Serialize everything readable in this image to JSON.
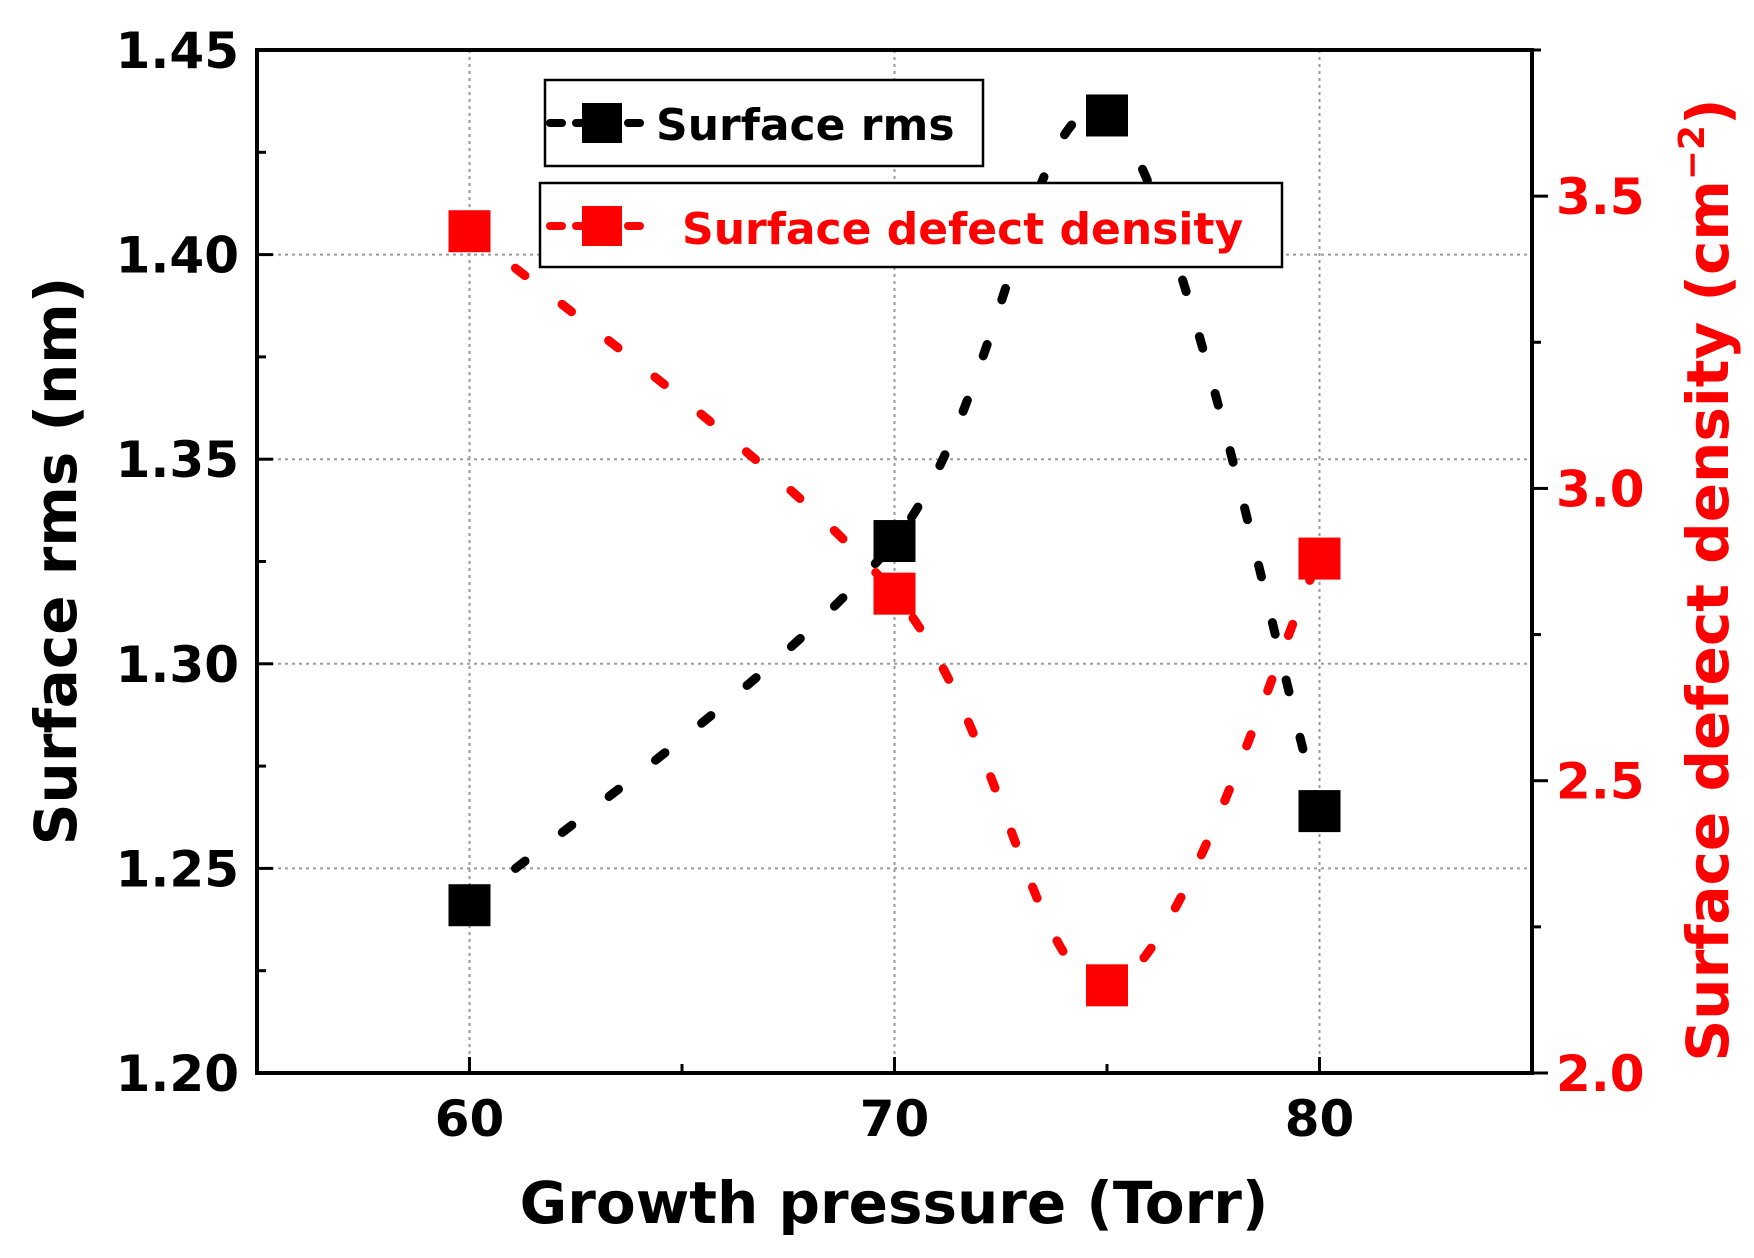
{
  "chart_data": {
    "type": "line",
    "xlabel": "Growth pressure (Torr)",
    "ylabel_left": "Surface rms (nm)",
    "ylabel_right": "Surface defect density (cm",
    "ylabel_right_exponent": "−2",
    "ylabel_right_close": ")",
    "xlim": [
      55,
      85
    ],
    "ylim_left": [
      1.2,
      1.45
    ],
    "ylim_right": [
      2.0,
      3.75
    ],
    "x_ticks": [
      60,
      70,
      80
    ],
    "x_tick_labels": [
      "60",
      "70",
      "80"
    ],
    "y_left_ticks": [
      1.2,
      1.25,
      1.3,
      1.35,
      1.4,
      1.45
    ],
    "y_left_tick_labels": [
      "1.20",
      "1.25",
      "1.30",
      "1.35",
      "1.40",
      "1.45"
    ],
    "y_right_ticks": [
      2.0,
      2.5,
      3.0,
      3.5
    ],
    "y_right_tick_labels": [
      "2.0",
      "2.5",
      "3.0",
      "3.5"
    ],
    "grid": true,
    "series": [
      {
        "name": "Surface rms",
        "axis": "left",
        "color": "#000000",
        "x": [
          60,
          70,
          75,
          80
        ],
        "y": [
          1.241,
          1.33,
          1.434,
          1.264
        ]
      },
      {
        "name": "Surface defect density",
        "axis": "right",
        "color": "#ff0000",
        "x": [
          60,
          70,
          75,
          80
        ],
        "y": [
          3.44,
          2.82,
          2.15,
          2.88
        ]
      }
    ],
    "legend_position": "top-center"
  }
}
